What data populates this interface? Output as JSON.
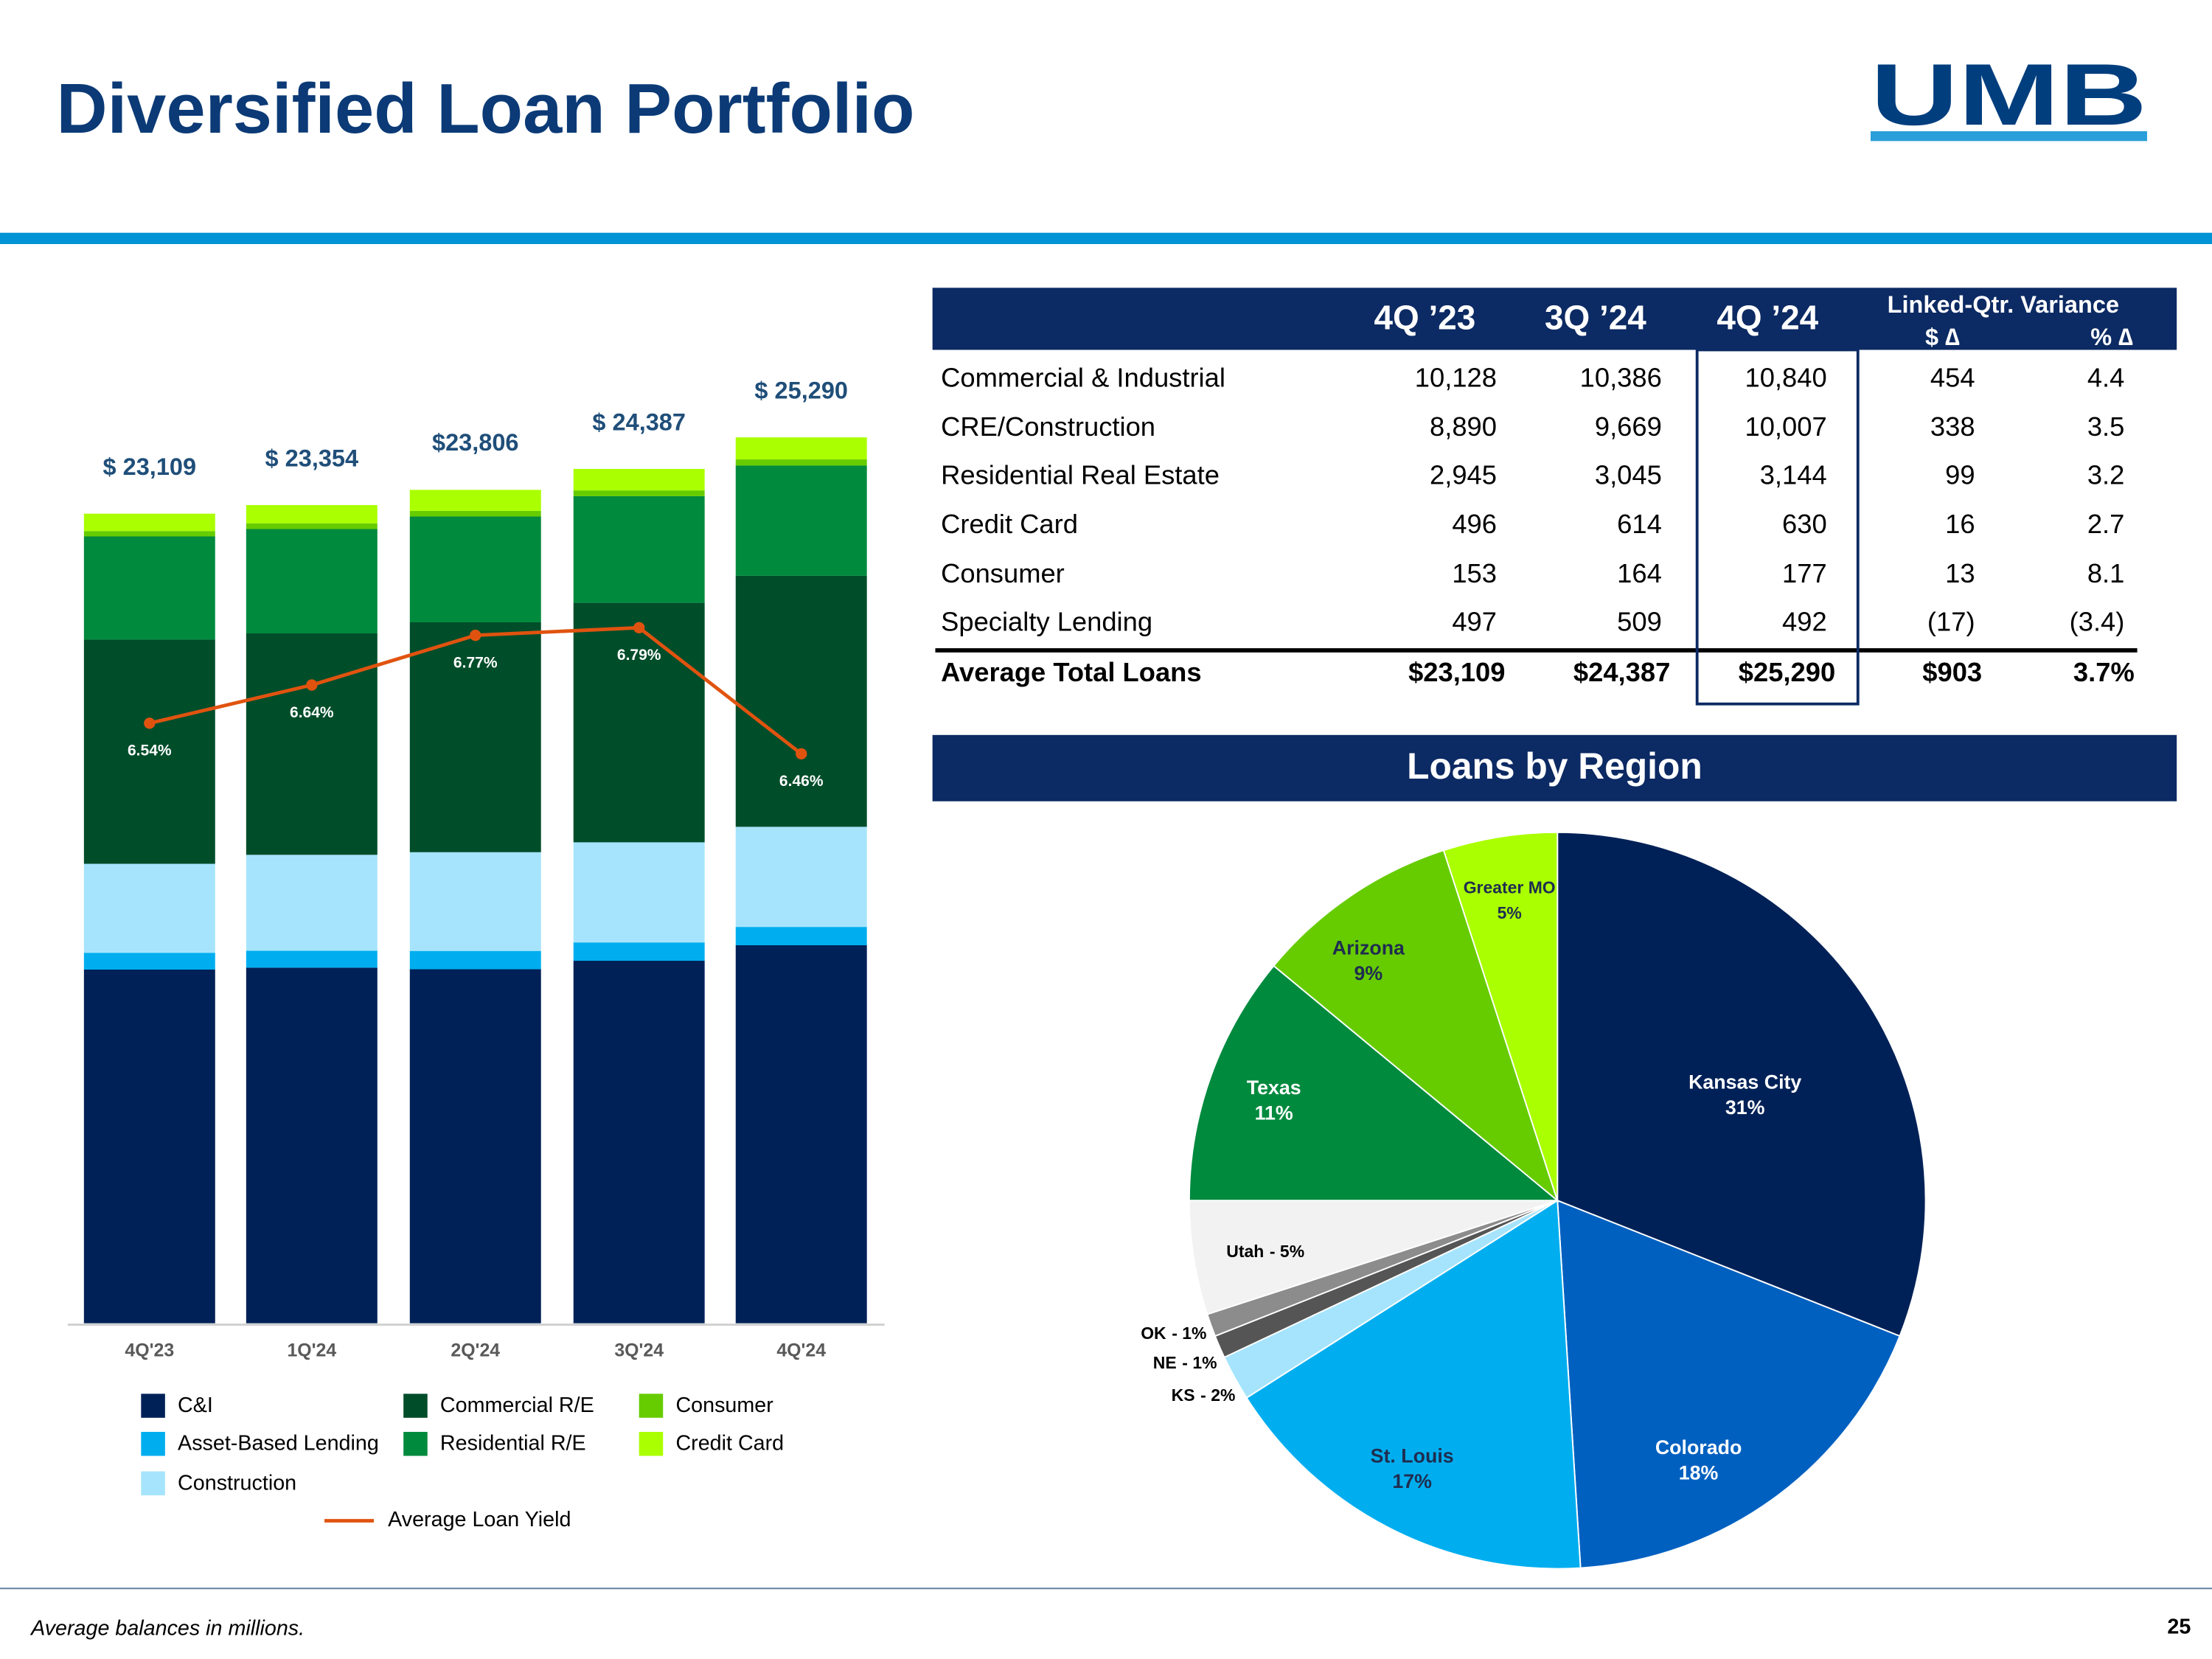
{
  "title": "Diversified Loan Portfolio",
  "logo": "UMB",
  "footnote": "Average balances in millions.",
  "page_number": "25",
  "table": {
    "columns": [
      "4Q ’23",
      "3Q ’24",
      "4Q ’24"
    ],
    "variance_header": "Linked-Qtr. Variance",
    "variance_columns": [
      "$ ∆",
      "% ∆"
    ],
    "rows": [
      [
        "Commercial & Industrial",
        "10,128",
        "10,386",
        "10,840",
        "454",
        "4.4"
      ],
      [
        "CRE/Construction",
        "8,890",
        "9,669",
        "10,007",
        "338",
        "3.5"
      ],
      [
        "Residential Real Estate",
        "2,945",
        "3,045",
        "3,144",
        "99",
        "3.2"
      ],
      [
        "Credit Card",
        "496",
        "614",
        "630",
        "16",
        "2.7"
      ],
      [
        "Consumer",
        "153",
        "164",
        "177",
        "13",
        "8.1"
      ],
      [
        "Specialty Lending",
        "497",
        "509",
        "492",
        "(17)",
        "(3.4)"
      ]
    ],
    "total_row": [
      "Average Total Loans",
      "$23,109",
      "$24,387",
      "$25,290",
      "$903",
      "3.7%"
    ]
  },
  "chart_data": [
    {
      "type": "bar",
      "stacked": true,
      "categories": [
        "4Q'23",
        "1Q'24",
        "2Q'24",
        "3Q'24",
        "4Q'24"
      ],
      "series": [
        {
          "name": "C&I",
          "color": "#002157",
          "values": [
            10095,
            10150,
            10105,
            10347,
            10790
          ]
        },
        {
          "name": "Asset-Based Lending",
          "color": "#00aeef",
          "values": [
            480,
            483,
            523,
            523,
            523
          ]
        },
        {
          "name": "Construction",
          "color": "#a6e4fd",
          "values": [
            2540,
            2738,
            2818,
            2858,
            2858
          ]
        },
        {
          "name": "Commercial R/E",
          "color": "#004d2a",
          "values": [
            6400,
            6321,
            6562,
            6836,
            7166
          ]
        },
        {
          "name": "Residential R/E",
          "color": "#008a3e",
          "values": [
            2945,
            2979,
            3020,
            3045,
            3144
          ]
        },
        {
          "name": "Consumer",
          "color": "#66cc00",
          "values": [
            153,
            161,
            161,
            164,
            177
          ]
        },
        {
          "name": "Credit Card",
          "color": "#aaff00",
          "values": [
            496,
            523,
            600,
            614,
            630
          ]
        },
        {
          "name": "Average Loan Yield",
          "type": "line",
          "axis": "y2",
          "color": "#e0530f",
          "values": [
            6.54,
            6.64,
            6.77,
            6.79,
            6.46
          ],
          "value_labels": [
            "6.54%",
            "6.64%",
            "6.77%",
            "6.79%",
            "6.46%"
          ]
        }
      ],
      "totals": [
        23109,
        23354,
        23806,
        24387,
        25290
      ],
      "total_labels": [
        "$ 23,109",
        "$ 23,354",
        "$23,806",
        "$ 24,387",
        "$ 25,290"
      ],
      "ylim": [
        0,
        30000
      ],
      "y2lim": [
        4.97,
        7.72
      ]
    },
    {
      "type": "pie",
      "title": "Loans by Region",
      "categories": [
        "Kansas City",
        "Colorado",
        "St. Louis",
        "KS",
        "NE",
        "OK",
        "Utah",
        "Texas",
        "Arizona",
        "Greater MO"
      ],
      "values": [
        31,
        18,
        17,
        2,
        1,
        1,
        5,
        11,
        9,
        5
      ],
      "value_labels": [
        "31%",
        "18%",
        "17%",
        "- 2%",
        "- 1%",
        "- 1%",
        "- 5%",
        "11%",
        "9%",
        "5%"
      ],
      "colors": [
        "#002157",
        "#0060c0",
        "#00aeef",
        "#a6e4fd",
        "#555555",
        "#8c8c8c",
        "#f2f2f2",
        "#008a3e",
        "#66cc00",
        "#aaff00"
      ]
    }
  ]
}
